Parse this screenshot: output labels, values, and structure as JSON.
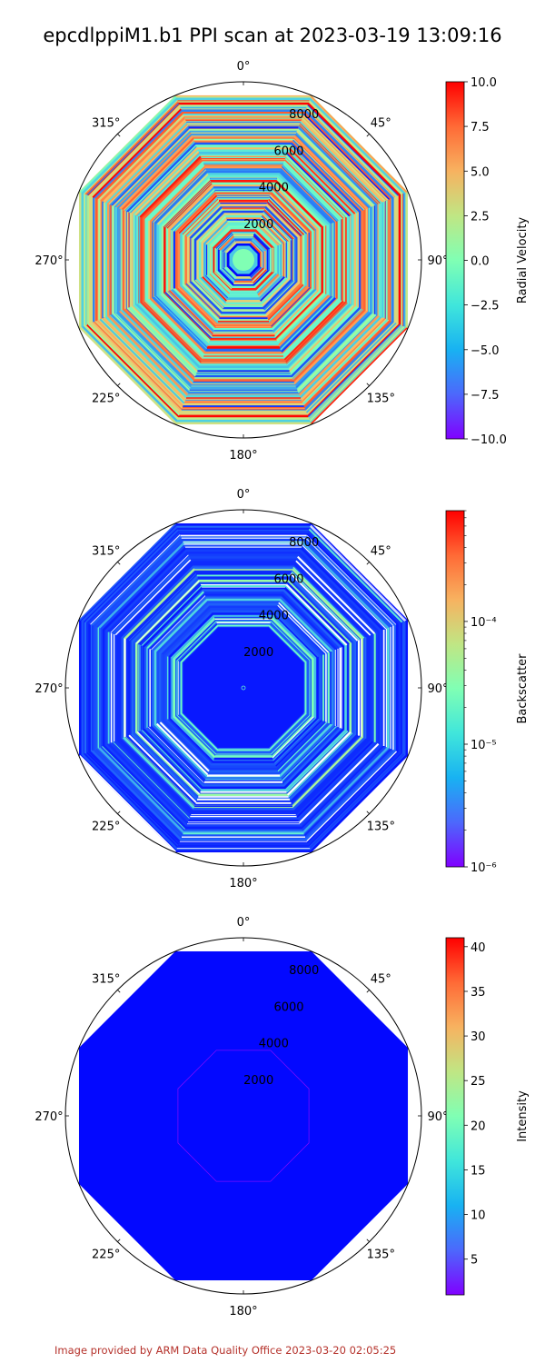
{
  "title": "epcdlppiM1.b1 PPI scan at 2023-03-19 13:09:16",
  "footer": "Image provided by ARM Data Quality Office 2023-03-20 02:05:25",
  "chart_data": [
    {
      "type": "polar",
      "theta_ticks": [
        "0°",
        "45°",
        "90°",
        "135°",
        "180°",
        "225°",
        "270°",
        "315°"
      ],
      "r_ticks": [
        2000,
        4000,
        6000,
        8000
      ],
      "r_max": 9000,
      "colorbar": {
        "label": "Radial Velocity",
        "scale": "linear",
        "min": -10.0,
        "max": 10.0,
        "ticks": [
          "10.0",
          "7.5",
          "5.0",
          "2.5",
          "0.0",
          "−2.5",
          "−5.0",
          "−7.5",
          "−10.0"
        ],
        "tick_values": [
          10,
          7.5,
          5,
          2.5,
          0,
          -2.5,
          -5,
          -7.5,
          -10
        ],
        "colormap": "rainbow"
      }
    },
    {
      "type": "polar",
      "theta_ticks": [
        "0°",
        "45°",
        "90°",
        "135°",
        "180°",
        "225°",
        "270°",
        "315°"
      ],
      "r_ticks": [
        2000,
        4000,
        6000,
        8000
      ],
      "r_max": 9000,
      "colorbar": {
        "label": "Backscatter",
        "scale": "log",
        "min": 1e-06,
        "max": 0.0008,
        "ticks": [
          "10⁻⁴",
          "10⁻⁵",
          "10⁻⁶"
        ],
        "tick_values": [
          0.0001,
          1e-05,
          1e-06
        ],
        "colormap": "rainbow"
      }
    },
    {
      "type": "polar",
      "theta_ticks": [
        "0°",
        "45°",
        "90°",
        "135°",
        "180°",
        "225°",
        "270°",
        "315°"
      ],
      "r_ticks": [
        2000,
        4000,
        6000,
        8000
      ],
      "r_max": 9000,
      "colorbar": {
        "label": "Intensity",
        "scale": "linear",
        "min": 1,
        "max": 41,
        "ticks": [
          "40",
          "35",
          "30",
          "25",
          "20",
          "15",
          "10",
          "5"
        ],
        "tick_values": [
          40,
          35,
          30,
          25,
          20,
          15,
          10,
          5
        ],
        "colormap": "rainbow"
      }
    }
  ]
}
